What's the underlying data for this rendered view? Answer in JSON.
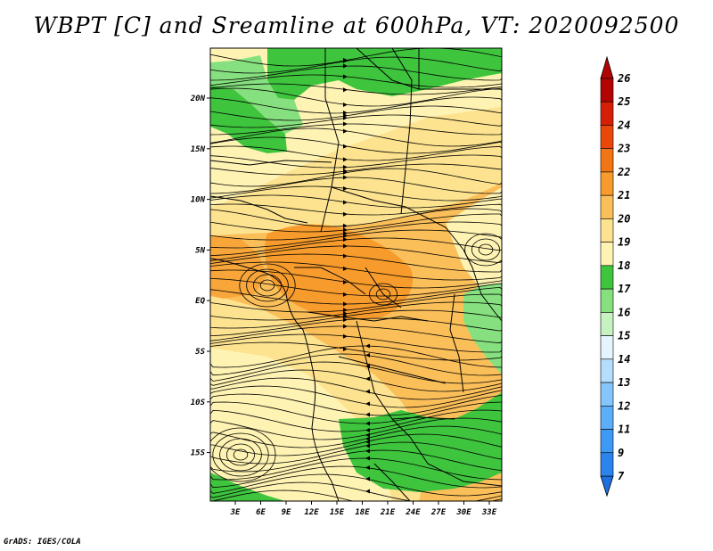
{
  "title": "WBPT [C] and Sreamline at 600hPa, VT: 2020092500",
  "footer": "GrADS: IGES/COLA",
  "map": {
    "lon_labels": [
      "3E",
      "6E",
      "9E",
      "12E",
      "15E",
      "18E",
      "21E",
      "24E",
      "27E",
      "30E",
      "33E"
    ],
    "lat_labels": [
      "20N",
      "15N",
      "10N",
      "5N",
      "EQ",
      "5S",
      "10S",
      "15S"
    ]
  },
  "colorbar": {
    "levels": [
      "7",
      "9",
      "11",
      "12",
      "13",
      "14",
      "15",
      "16",
      "17",
      "18",
      "19",
      "20",
      "21",
      "22",
      "23",
      "24",
      "25",
      "26"
    ],
    "colors": [
      "#1e6fe0",
      "#2b84ee",
      "#3c9af5",
      "#5aaff8",
      "#84c6fb",
      "#b4defc",
      "#e4f5fd",
      "#c6f2c1",
      "#86e07f",
      "#3fc43e",
      "#fff3b3",
      "#fde38f",
      "#fbbf5a",
      "#f79b2c",
      "#f27514",
      "#e9480a",
      "#d51f06",
      "#b30404"
    ],
    "top_color": "#b30404",
    "bottom_color": "#1e6fe0"
  },
  "legend_colors": {
    "green": "#3fc43e",
    "light_green": "#86e07f",
    "pale_yellow": "#fff3b3",
    "yellow": "#fde38f",
    "light_orange": "#fbbf5a",
    "orange": "#f79b2c"
  }
}
